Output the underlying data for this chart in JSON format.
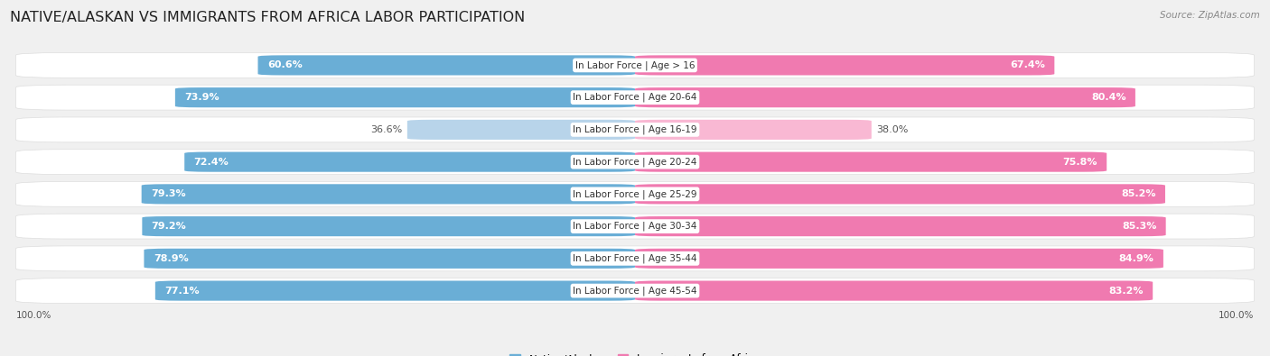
{
  "title": "NATIVE/ALASKAN VS IMMIGRANTS FROM AFRICA LABOR PARTICIPATION",
  "source": "Source: ZipAtlas.com",
  "categories": [
    "In Labor Force | Age > 16",
    "In Labor Force | Age 20-64",
    "In Labor Force | Age 16-19",
    "In Labor Force | Age 20-24",
    "In Labor Force | Age 25-29",
    "In Labor Force | Age 30-34",
    "In Labor Force | Age 35-44",
    "In Labor Force | Age 45-54"
  ],
  "native_values": [
    60.6,
    73.9,
    36.6,
    72.4,
    79.3,
    79.2,
    78.9,
    77.1
  ],
  "immigrant_values": [
    67.4,
    80.4,
    38.0,
    75.8,
    85.2,
    85.3,
    84.9,
    83.2
  ],
  "native_color_full": "#6aaed6",
  "native_color_light": "#b8d4ea",
  "immigrant_color_full": "#f07ab0",
  "immigrant_color_light": "#f9b8d3",
  "bg_color": "#f0f0f0",
  "row_bg_color": "#e2e2e2",
  "legend_native": "Native/Alaskan",
  "legend_immigrant": "Immigrants from Africa",
  "title_fontsize": 11.5,
  "value_fontsize": 8.0,
  "category_fontsize": 7.5
}
